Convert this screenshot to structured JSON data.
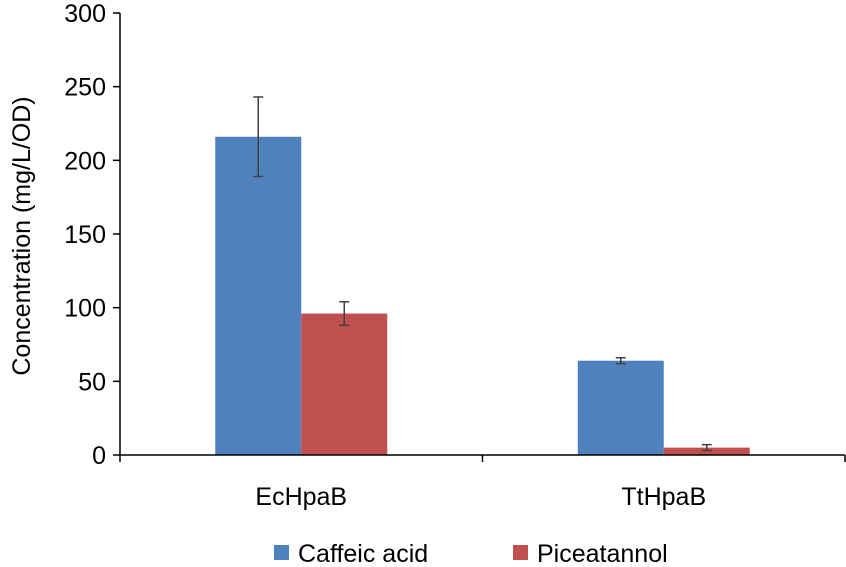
{
  "chart_data": {
    "type": "bar",
    "title": "",
    "xlabel": "",
    "ylabel": "Concentration (mg/L/OD)",
    "ylim": [
      0,
      300
    ],
    "yticks": [
      0,
      50,
      100,
      150,
      200,
      250,
      300
    ],
    "grid": false,
    "legend_position": "bottom",
    "categories": [
      "EcHpaB",
      "TtHpaB"
    ],
    "series": [
      {
        "name": "Caffeic acid",
        "color": "#4F81BD",
        "values": [
          216,
          64
        ],
        "errors": [
          27,
          2
        ]
      },
      {
        "name": "Piceatannol",
        "color": "#C0504D",
        "values": [
          96,
          5
        ],
        "errors": [
          8,
          2
        ]
      }
    ]
  }
}
